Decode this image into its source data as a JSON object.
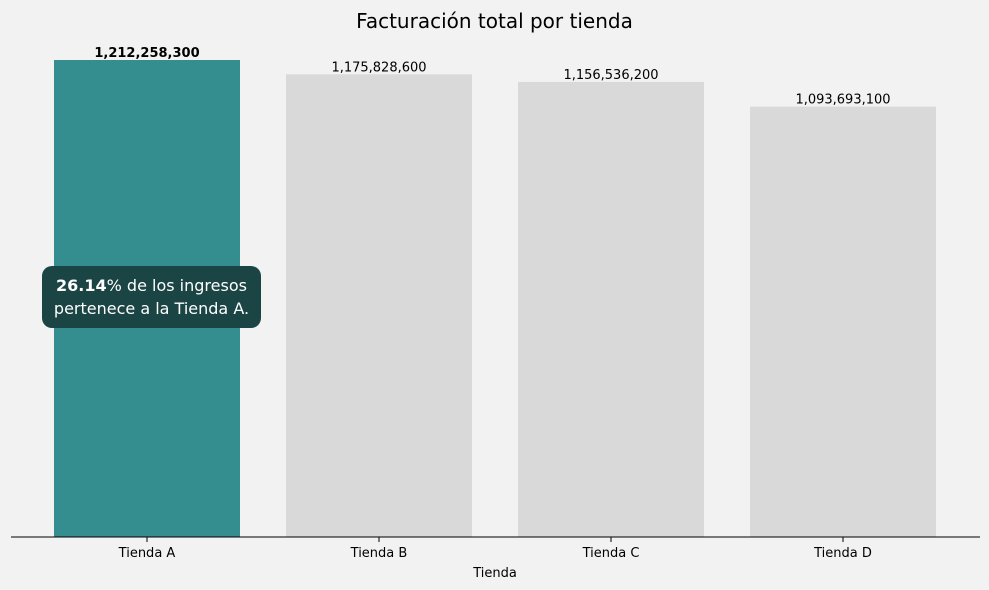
{
  "chart_data": {
    "type": "bar",
    "title": "Facturación total por tienda",
    "xlabel": "Tienda",
    "ylabel": "",
    "categories": [
      "Tienda A",
      "Tienda B",
      "Tienda C",
      "Tienda D"
    ],
    "values": [
      1212258300,
      1175828600,
      1156536200,
      1093693100
    ],
    "value_labels": [
      "1,212,258,300",
      "1,175,828,600",
      "1,156,536,200",
      "1,093,693,100"
    ],
    "ylim": [
      0,
      1212258300
    ],
    "highlight_category": "Tienda A",
    "colors": {
      "highlight": "#348d8f",
      "default": "#d9d9d9",
      "axis": "#000000",
      "background": "#f2f2f2"
    },
    "annotation": {
      "bold_value": "26.14",
      "text_line1": "% de los ingresos",
      "text_line2": "pertenece a la Tienda A.",
      "background": "#1b4444"
    },
    "grid": false,
    "y_axis_visible": false
  }
}
